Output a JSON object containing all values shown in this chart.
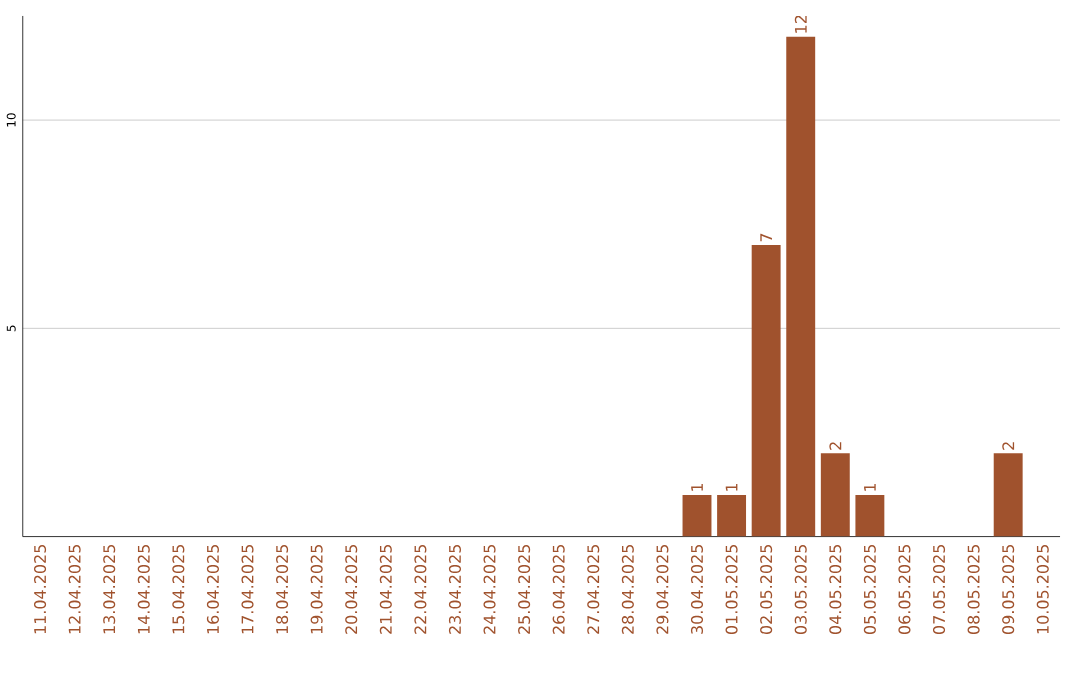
{
  "chart_data": {
    "type": "bar",
    "categories": [
      "11.04.2025",
      "12.04.2025",
      "13.04.2025",
      "14.04.2025",
      "15.04.2025",
      "16.04.2025",
      "17.04.2025",
      "18.04.2025",
      "19.04.2025",
      "20.04.2025",
      "21.04.2025",
      "22.04.2025",
      "23.04.2025",
      "24.04.2025",
      "25.04.2025",
      "26.04.2025",
      "27.04.2025",
      "28.04.2025",
      "29.04.2025",
      "30.04.2025",
      "01.05.2025",
      "02.05.2025",
      "03.05.2025",
      "04.05.2025",
      "05.05.2025",
      "06.05.2025",
      "07.05.2025",
      "08.05.2025",
      "09.05.2025",
      "10.05.2025"
    ],
    "values": [
      0,
      0,
      0,
      0,
      0,
      0,
      0,
      0,
      0,
      0,
      0,
      0,
      0,
      0,
      0,
      0,
      0,
      0,
      0,
      1,
      1,
      7,
      12,
      2,
      1,
      0,
      0,
      0,
      2,
      0
    ],
    "value_labels": [
      null,
      null,
      null,
      null,
      null,
      null,
      null,
      null,
      null,
      null,
      null,
      null,
      null,
      null,
      null,
      null,
      null,
      null,
      null,
      "1",
      "1",
      "7",
      "12",
      "2",
      "1",
      null,
      null,
      null,
      "2",
      null
    ],
    "color": "#a0522d",
    "ylim": [
      0,
      12.5
    ],
    "yticks": [
      5,
      10
    ],
    "grid": "y"
  }
}
